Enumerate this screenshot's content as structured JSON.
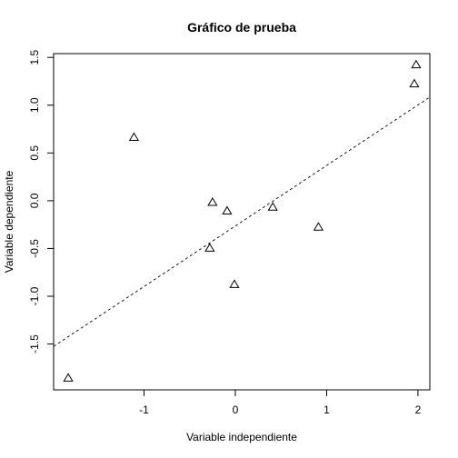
{
  "chart_data": {
    "type": "scatter",
    "title": "Gráfico de prueba",
    "xlabel": "Variable independiente",
    "ylabel": "Variable dependiente",
    "xlim": [
      -1.99,
      2.13
    ],
    "ylim": [
      -1.98,
      1.54
    ],
    "x_ticks": [
      -1,
      0,
      1,
      2
    ],
    "x_tick_labels": [
      "-1",
      "0",
      "1",
      "2"
    ],
    "y_ticks": [
      -1.5,
      -1.0,
      -0.5,
      0.0,
      0.5,
      1.0,
      1.5
    ],
    "y_tick_labels": [
      "-1.5",
      "-1.0",
      "-0.5",
      "0.0",
      "0.5",
      "1.0",
      "1.5"
    ],
    "marker": "open-triangle",
    "grid": false,
    "points": [
      {
        "x": -1.83,
        "y": -1.86
      },
      {
        "x": -1.11,
        "y": 0.66
      },
      {
        "x": -0.25,
        "y": -0.02
      },
      {
        "x": -0.09,
        "y": -0.11
      },
      {
        "x": -0.28,
        "y": -0.5
      },
      {
        "x": -0.01,
        "y": -0.88
      },
      {
        "x": 0.41,
        "y": -0.07
      },
      {
        "x": 0.91,
        "y": -0.28
      },
      {
        "x": 1.96,
        "y": 1.22
      },
      {
        "x": 1.98,
        "y": 1.42
      }
    ],
    "reference_line": {
      "style": "dashed",
      "intercept": -0.2645,
      "slope": 0.6335
    }
  }
}
